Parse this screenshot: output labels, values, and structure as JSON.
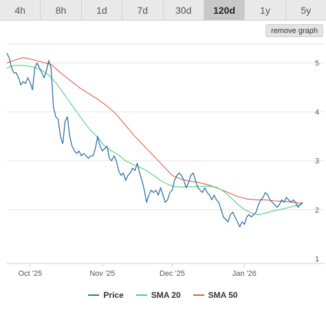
{
  "tabs": [
    {
      "label": "4h",
      "active": false
    },
    {
      "label": "8h",
      "active": false
    },
    {
      "label": "1d",
      "active": false
    },
    {
      "label": "7d",
      "active": false
    },
    {
      "label": "30d",
      "active": false
    },
    {
      "label": "120d",
      "active": true
    },
    {
      "label": "1y",
      "active": false
    },
    {
      "label": "5y",
      "active": false
    }
  ],
  "remove_graph_label": "remove graph",
  "chart_data": {
    "type": "line",
    "title": "",
    "xlabel": "",
    "ylabel": "",
    "x_range": [
      "2025-09-21",
      "2026-01-26"
    ],
    "ylim": [
      0.9,
      5.5
    ],
    "y_axis_side": "right",
    "y_ticks": [
      1,
      2,
      3,
      4,
      5
    ],
    "x_ticks": [
      {
        "date": "2025-10-01",
        "label": "Oct '25"
      },
      {
        "date": "2025-11-01",
        "label": "Nov '25"
      },
      {
        "date": "2025-12-01",
        "label": "Dec '25"
      },
      {
        "date": "2026-01-01",
        "label": "Jan '26"
      }
    ],
    "grid": true,
    "legend_position": "bottom",
    "series": [
      {
        "name": "Price",
        "color": "#2f6fa6",
        "points": [
          [
            "2025-09-21",
            5.2
          ],
          [
            "2025-09-22",
            5.1
          ],
          [
            "2025-09-23",
            4.9
          ],
          [
            "2025-09-24",
            4.8
          ],
          [
            "2025-09-25",
            4.8
          ],
          [
            "2025-09-26",
            4.7
          ],
          [
            "2025-09-27",
            4.55
          ],
          [
            "2025-09-28",
            4.62
          ],
          [
            "2025-09-29",
            4.58
          ],
          [
            "2025-09-30",
            4.7
          ],
          [
            "2025-10-01",
            4.6
          ],
          [
            "2025-10-02",
            4.45
          ],
          [
            "2025-10-03",
            4.9
          ],
          [
            "2025-10-04",
            5.0
          ],
          [
            "2025-10-05",
            4.9
          ],
          [
            "2025-10-06",
            4.8
          ],
          [
            "2025-10-07",
            4.7
          ],
          [
            "2025-10-08",
            4.85
          ],
          [
            "2025-10-09",
            5.05
          ],
          [
            "2025-10-10",
            4.9
          ],
          [
            "2025-10-11",
            4.1
          ],
          [
            "2025-10-12",
            3.9
          ],
          [
            "2025-10-13",
            3.85
          ],
          [
            "2025-10-14",
            3.5
          ],
          [
            "2025-10-15",
            3.35
          ],
          [
            "2025-10-16",
            3.8
          ],
          [
            "2025-10-17",
            3.9
          ],
          [
            "2025-10-18",
            3.5
          ],
          [
            "2025-10-19",
            3.3
          ],
          [
            "2025-10-20",
            3.2
          ],
          [
            "2025-10-21",
            3.15
          ],
          [
            "2025-10-22",
            3.2
          ],
          [
            "2025-10-23",
            3.1
          ],
          [
            "2025-10-24",
            3.15
          ],
          [
            "2025-10-25",
            3.1
          ],
          [
            "2025-10-26",
            3.05
          ],
          [
            "2025-10-27",
            3.1
          ],
          [
            "2025-10-28",
            3.1
          ],
          [
            "2025-10-29",
            3.25
          ],
          [
            "2025-10-30",
            3.5
          ],
          [
            "2025-10-31",
            3.3
          ],
          [
            "2025-11-01",
            3.2
          ],
          [
            "2025-11-02",
            3.25
          ],
          [
            "2025-11-03",
            3.3
          ],
          [
            "2025-11-04",
            3.05
          ],
          [
            "2025-11-05",
            3.0
          ],
          [
            "2025-11-06",
            3.1
          ],
          [
            "2025-11-07",
            3.0
          ],
          [
            "2025-11-08",
            2.8
          ],
          [
            "2025-11-09",
            2.7
          ],
          [
            "2025-11-10",
            2.75
          ],
          [
            "2025-11-11",
            2.6
          ],
          [
            "2025-11-12",
            2.7
          ],
          [
            "2025-11-13",
            2.75
          ],
          [
            "2025-11-14",
            2.85
          ],
          [
            "2025-11-15",
            2.8
          ],
          [
            "2025-11-16",
            2.95
          ],
          [
            "2025-11-17",
            2.75
          ],
          [
            "2025-11-18",
            2.6
          ],
          [
            "2025-11-19",
            2.4
          ],
          [
            "2025-11-20",
            2.15
          ],
          [
            "2025-11-21",
            2.3
          ],
          [
            "2025-11-22",
            2.4
          ],
          [
            "2025-11-23",
            2.35
          ],
          [
            "2025-11-24",
            2.4
          ],
          [
            "2025-11-25",
            2.3
          ],
          [
            "2025-11-26",
            2.45
          ],
          [
            "2025-11-27",
            2.3
          ],
          [
            "2025-11-28",
            2.15
          ],
          [
            "2025-11-29",
            2.2
          ],
          [
            "2025-11-30",
            2.35
          ],
          [
            "2025-12-01",
            2.4
          ],
          [
            "2025-12-02",
            2.6
          ],
          [
            "2025-12-03",
            2.7
          ],
          [
            "2025-12-04",
            2.75
          ],
          [
            "2025-12-05",
            2.7
          ],
          [
            "2025-12-06",
            2.6
          ],
          [
            "2025-12-07",
            2.45
          ],
          [
            "2025-12-08",
            2.55
          ],
          [
            "2025-12-09",
            2.7
          ],
          [
            "2025-12-10",
            2.75
          ],
          [
            "2025-12-11",
            2.6
          ],
          [
            "2025-12-12",
            2.45
          ],
          [
            "2025-12-13",
            2.4
          ],
          [
            "2025-12-14",
            2.35
          ],
          [
            "2025-12-15",
            2.45
          ],
          [
            "2025-12-16",
            2.35
          ],
          [
            "2025-12-17",
            2.3
          ],
          [
            "2025-12-18",
            2.2
          ],
          [
            "2025-12-19",
            2.3
          ],
          [
            "2025-12-20",
            2.2
          ],
          [
            "2025-12-21",
            2.15
          ],
          [
            "2025-12-22",
            2.0
          ],
          [
            "2025-12-23",
            1.85
          ],
          [
            "2025-12-24",
            1.8
          ],
          [
            "2025-12-25",
            1.75
          ],
          [
            "2025-12-26",
            1.9
          ],
          [
            "2025-12-27",
            1.95
          ],
          [
            "2025-12-28",
            1.85
          ],
          [
            "2025-12-29",
            1.75
          ],
          [
            "2025-12-30",
            1.65
          ],
          [
            "2025-12-31",
            1.75
          ],
          [
            "2026-01-01",
            1.7
          ],
          [
            "2026-01-02",
            1.85
          ],
          [
            "2026-01-03",
            1.9
          ],
          [
            "2026-01-04",
            1.85
          ],
          [
            "2026-01-05",
            1.9
          ],
          [
            "2026-01-06",
            1.95
          ],
          [
            "2026-01-07",
            2.1
          ],
          [
            "2026-01-08",
            2.2
          ],
          [
            "2026-01-09",
            2.25
          ],
          [
            "2026-01-10",
            2.35
          ],
          [
            "2026-01-11",
            2.3
          ],
          [
            "2026-01-12",
            2.2
          ],
          [
            "2026-01-13",
            2.15
          ],
          [
            "2026-01-14",
            2.1
          ],
          [
            "2026-01-15",
            2.05
          ],
          [
            "2026-01-16",
            2.1
          ],
          [
            "2026-01-17",
            2.2
          ],
          [
            "2026-01-18",
            2.15
          ],
          [
            "2026-01-19",
            2.25
          ],
          [
            "2026-01-20",
            2.2
          ],
          [
            "2026-01-21",
            2.15
          ],
          [
            "2026-01-22",
            2.2
          ],
          [
            "2026-01-23",
            2.15
          ],
          [
            "2026-01-24",
            2.05
          ],
          [
            "2026-01-25",
            2.1
          ],
          [
            "2026-01-26",
            2.15
          ]
        ]
      },
      {
        "name": "SMA 20",
        "color": "#4fcf7a",
        "points": [
          [
            "2025-09-21",
            4.9
          ],
          [
            "2025-09-24",
            4.95
          ],
          [
            "2025-09-28",
            4.95
          ],
          [
            "2025-10-02",
            4.92
          ],
          [
            "2025-10-06",
            4.85
          ],
          [
            "2025-10-09",
            4.75
          ],
          [
            "2025-10-12",
            4.6
          ],
          [
            "2025-10-15",
            4.4
          ],
          [
            "2025-10-18",
            4.2
          ],
          [
            "2025-10-21",
            4.0
          ],
          [
            "2025-10-24",
            3.8
          ],
          [
            "2025-10-27",
            3.62
          ],
          [
            "2025-10-30",
            3.48
          ],
          [
            "2025-11-02",
            3.3
          ],
          [
            "2025-11-05",
            3.2
          ],
          [
            "2025-11-08",
            3.12
          ],
          [
            "2025-11-11",
            3.0
          ],
          [
            "2025-11-14",
            2.93
          ],
          [
            "2025-11-17",
            2.87
          ],
          [
            "2025-11-20",
            2.8
          ],
          [
            "2025-11-23",
            2.7
          ],
          [
            "2025-11-26",
            2.6
          ],
          [
            "2025-11-29",
            2.52
          ],
          [
            "2025-12-02",
            2.47
          ],
          [
            "2025-12-05",
            2.46
          ],
          [
            "2025-12-09",
            2.47
          ],
          [
            "2025-12-13",
            2.48
          ],
          [
            "2025-12-17",
            2.48
          ],
          [
            "2025-12-20",
            2.46
          ],
          [
            "2025-12-23",
            2.38
          ],
          [
            "2025-12-26",
            2.25
          ],
          [
            "2025-12-29",
            2.12
          ],
          [
            "2026-01-01",
            2.0
          ],
          [
            "2026-01-04",
            1.93
          ],
          [
            "2026-01-07",
            1.9
          ],
          [
            "2026-01-10",
            1.93
          ],
          [
            "2026-01-14",
            1.98
          ],
          [
            "2026-01-18",
            2.02
          ],
          [
            "2026-01-22",
            2.07
          ],
          [
            "2026-01-26",
            2.12
          ]
        ]
      },
      {
        "name": "SMA 50",
        "color": "#e05a4f",
        "points": [
          [
            "2025-09-21",
            5.0
          ],
          [
            "2025-09-25",
            5.07
          ],
          [
            "2025-09-28",
            5.11
          ],
          [
            "2025-10-02",
            5.07
          ],
          [
            "2025-10-06",
            5.02
          ],
          [
            "2025-10-10",
            4.97
          ],
          [
            "2025-10-14",
            4.8
          ],
          [
            "2025-10-18",
            4.65
          ],
          [
            "2025-10-22",
            4.5
          ],
          [
            "2025-10-26",
            4.38
          ],
          [
            "2025-10-30",
            4.26
          ],
          [
            "2025-11-03",
            4.12
          ],
          [
            "2025-11-07",
            3.95
          ],
          [
            "2025-11-11",
            3.72
          ],
          [
            "2025-11-15",
            3.5
          ],
          [
            "2025-11-19",
            3.3
          ],
          [
            "2025-11-23",
            3.1
          ],
          [
            "2025-11-27",
            2.9
          ],
          [
            "2025-12-01",
            2.7
          ],
          [
            "2025-12-05",
            2.62
          ],
          [
            "2025-12-09",
            2.58
          ],
          [
            "2025-12-13",
            2.55
          ],
          [
            "2025-12-17",
            2.5
          ],
          [
            "2025-12-21",
            2.43
          ],
          [
            "2025-12-25",
            2.35
          ],
          [
            "2025-12-29",
            2.27
          ],
          [
            "2026-01-02",
            2.22
          ],
          [
            "2026-01-06",
            2.2
          ],
          [
            "2026-01-10",
            2.2
          ],
          [
            "2026-01-14",
            2.18
          ],
          [
            "2026-01-18",
            2.17
          ],
          [
            "2026-01-22",
            2.15
          ],
          [
            "2026-01-26",
            2.13
          ]
        ]
      }
    ]
  }
}
